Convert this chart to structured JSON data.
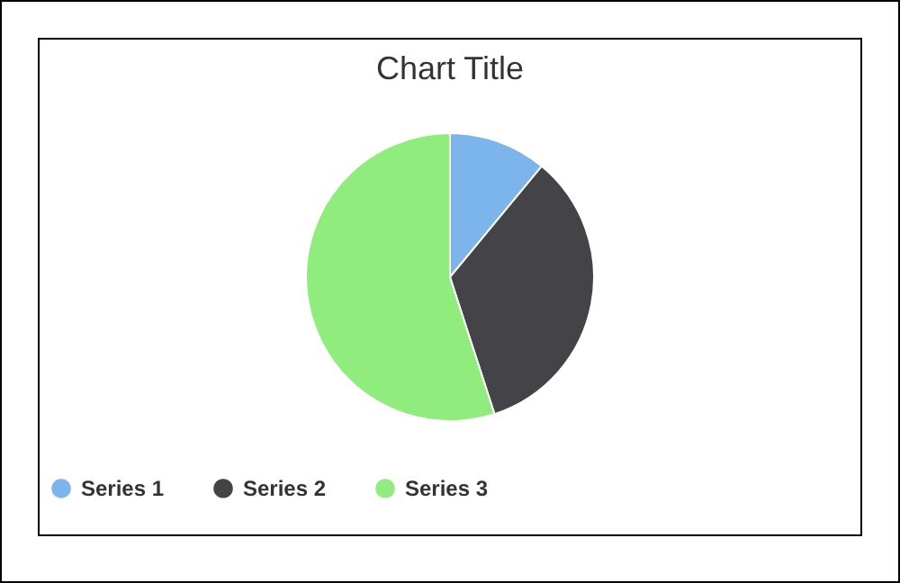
{
  "chart_data": {
    "type": "pie",
    "title": "Chart Title",
    "categories": [
      "Series 1",
      "Series 2",
      "Series 3"
    ],
    "values": [
      11,
      34,
      55
    ],
    "colors": [
      "#7cb5ec",
      "#434348",
      "#90ed7d"
    ],
    "legend": "bottom"
  }
}
